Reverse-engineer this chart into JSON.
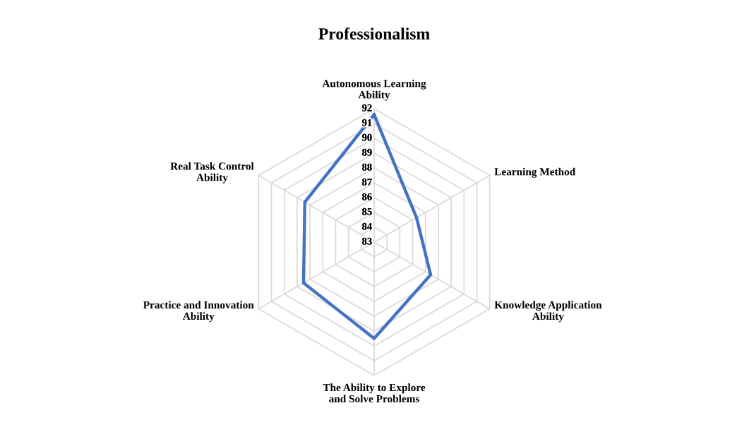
{
  "chart_data": {
    "type": "radar",
    "title": "Professionalism",
    "categories": [
      "Autonomous Learning\nAbility",
      "Learning Method",
      "Knowledge Application\nAbility",
      "The Ability to Explore\nand Solve Problems",
      "Practice and Innovation\nAbility",
      "Real Task Control\nAbility"
    ],
    "series": [
      {
        "color": "#4472c4",
        "values": [
          91.6,
          86.3,
          87.4,
          89.5,
          88.5,
          88.4
        ]
      }
    ],
    "ylim": [
      83,
      92
    ],
    "yticks": [
      83,
      84,
      85,
      86,
      87,
      88,
      89,
      90,
      91,
      92
    ],
    "grid": true,
    "marker": "none"
  }
}
